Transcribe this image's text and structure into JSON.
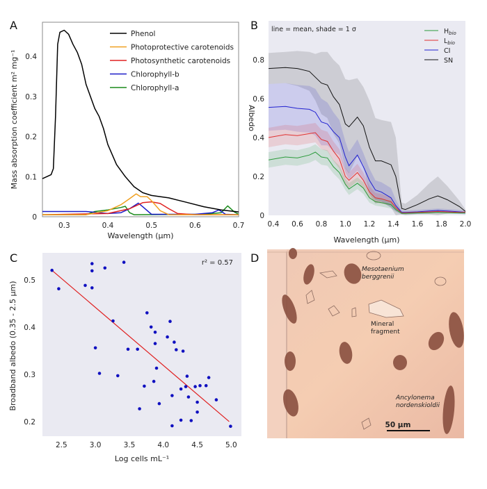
{
  "panels": {
    "a": "A",
    "b": "B",
    "c": "C",
    "d": "D"
  },
  "chart_data": [
    {
      "type": "line",
      "panel": "A",
      "xlabel": "Wavelength (μm)",
      "ylabel": "Mass absorption coefficient m² mg⁻¹",
      "xlim": [
        0.25,
        0.7
      ],
      "ylim": [
        0,
        0.485
      ],
      "xticks": [
        0.3,
        0.4,
        0.5,
        0.6,
        0.7
      ],
      "xtick_labels": [
        "0.3",
        "0.4",
        "0.5",
        "0.6",
        "0.7"
      ],
      "yticks": [
        0,
        0.1,
        0.2,
        0.3,
        0.4
      ],
      "ytick_labels": [
        "0",
        "0.1",
        "0.2",
        "0.3",
        "0.4"
      ],
      "grid": false,
      "legend_placement": "top-right",
      "series": [
        {
          "name": "Phenol",
          "color": "#000000",
          "x": [
            0.25,
            0.26,
            0.27,
            0.275,
            0.28,
            0.285,
            0.29,
            0.3,
            0.31,
            0.32,
            0.33,
            0.34,
            0.35,
            0.37,
            0.38,
            0.39,
            0.4,
            0.42,
            0.44,
            0.46,
            0.48,
            0.5,
            0.54,
            0.58,
            0.62,
            0.66,
            0.7
          ],
          "y": [
            0.095,
            0.1,
            0.105,
            0.12,
            0.25,
            0.43,
            0.46,
            0.465,
            0.455,
            0.43,
            0.41,
            0.38,
            0.33,
            0.27,
            0.25,
            0.22,
            0.18,
            0.13,
            0.1,
            0.075,
            0.06,
            0.053,
            0.047,
            0.036,
            0.025,
            0.017,
            0.012
          ]
        },
        {
          "name": "Photoprotective carotenoids",
          "color": "#f0a020",
          "x": [
            0.25,
            0.35,
            0.4,
            0.43,
            0.45,
            0.465,
            0.475,
            0.49,
            0.5,
            0.52,
            0.54,
            0.7
          ],
          "y": [
            0.005,
            0.005,
            0.015,
            0.03,
            0.045,
            0.057,
            0.05,
            0.05,
            0.04,
            0.015,
            0.005,
            0.005
          ]
        },
        {
          "name": "Photosynthetic carotenoids",
          "color": "#e02020",
          "x": [
            0.25,
            0.4,
            0.45,
            0.48,
            0.5,
            0.52,
            0.54,
            0.56,
            0.6,
            0.7
          ],
          "y": [
            0.005,
            0.008,
            0.02,
            0.035,
            0.037,
            0.033,
            0.02,
            0.008,
            0.005,
            0.005
          ]
        },
        {
          "name": "Chlorophyll-b",
          "color": "#1a1ac8",
          "x": [
            0.25,
            0.35,
            0.4,
            0.43,
            0.45,
            0.47,
            0.48,
            0.5,
            0.6,
            0.64,
            0.655,
            0.67,
            0.7
          ],
          "y": [
            0.013,
            0.013,
            0.008,
            0.01,
            0.02,
            0.034,
            0.025,
            0.006,
            0.006,
            0.01,
            0.017,
            0.006,
            0.005
          ]
        },
        {
          "name": "Chlorophyll-a",
          "color": "#1a8a1a",
          "x": [
            0.25,
            0.35,
            0.37,
            0.4,
            0.43,
            0.44,
            0.45,
            0.46,
            0.62,
            0.66,
            0.675,
            0.69,
            0.7
          ],
          "y": [
            0.005,
            0.005,
            0.013,
            0.017,
            0.023,
            0.026,
            0.01,
            0.005,
            0.006,
            0.01,
            0.027,
            0.012,
            0.006
          ]
        }
      ]
    },
    {
      "type": "area",
      "panel": "B",
      "annotation": "line = mean, shade = 1 σ",
      "xlabel": "Wavelength (μm)",
      "ylabel": "Albedo",
      "xlim": [
        0.36,
        2.0
      ],
      "ylim": [
        0,
        1.0
      ],
      "xticks": [
        0.4,
        0.6,
        0.8,
        1.0,
        1.2,
        1.4,
        1.6,
        1.8,
        2.0
      ],
      "xtick_labels": [
        "0.4",
        "0.6",
        "0.8",
        "1.0",
        "1.2",
        "1.4",
        "1.6",
        "1.8",
        "2.0"
      ],
      "yticks": [
        0,
        0.2,
        0.4,
        0.6,
        0.8
      ],
      "ytick_labels": [
        "0",
        "0.2",
        "0.4",
        "0.6",
        "0.8"
      ],
      "grid": false,
      "background": "#eaeaf2",
      "legend_placement": "top-right",
      "x": [
        0.36,
        0.5,
        0.6,
        0.7,
        0.75,
        0.8,
        0.85,
        0.9,
        0.95,
        1.0,
        1.03,
        1.1,
        1.15,
        1.2,
        1.25,
        1.3,
        1.38,
        1.42,
        1.47,
        1.5,
        1.6,
        1.7,
        1.77,
        1.85,
        1.95,
        2.0
      ],
      "series": [
        {
          "name": "SN",
          "color": "#111111",
          "mean": [
            0.755,
            0.76,
            0.755,
            0.74,
            0.71,
            0.68,
            0.67,
            0.61,
            0.57,
            0.47,
            0.455,
            0.505,
            0.46,
            0.35,
            0.28,
            0.28,
            0.26,
            0.2,
            0.035,
            0.03,
            0.055,
            0.085,
            0.1,
            0.08,
            0.045,
            0.02
          ],
          "sigma": [
            0.08,
            0.08,
            0.09,
            0.1,
            0.12,
            0.16,
            0.17,
            0.19,
            0.2,
            0.23,
            0.24,
            0.2,
            0.2,
            0.24,
            0.22,
            0.21,
            0.22,
            0.2,
            0.03,
            0.03,
            0.05,
            0.08,
            0.1,
            0.07,
            0.03,
            0.01
          ]
        },
        {
          "name": "CI",
          "color": "#2020d0",
          "mean": [
            0.555,
            0.56,
            0.55,
            0.545,
            0.53,
            0.48,
            0.47,
            0.43,
            0.4,
            0.3,
            0.255,
            0.31,
            0.25,
            0.18,
            0.13,
            0.12,
            0.09,
            0.05,
            0.015,
            0.015,
            0.018,
            0.022,
            0.025,
            0.022,
            0.018,
            0.015
          ],
          "sigma": [
            0.12,
            0.12,
            0.12,
            0.12,
            0.12,
            0.12,
            0.11,
            0.1,
            0.09,
            0.08,
            0.07,
            0.08,
            0.07,
            0.06,
            0.05,
            0.05,
            0.05,
            0.03,
            0.01,
            0.01,
            0.01,
            0.01,
            0.01,
            0.01,
            0.01,
            0.01
          ]
        },
        {
          "name": "Lbio",
          "label_main": "L",
          "label_sub": "bio",
          "color": "#e03030",
          "mean": [
            0.4,
            0.415,
            0.41,
            0.42,
            0.425,
            0.39,
            0.38,
            0.33,
            0.29,
            0.2,
            0.18,
            0.22,
            0.18,
            0.12,
            0.09,
            0.085,
            0.07,
            0.04,
            0.012,
            0.013,
            0.015,
            0.018,
            0.02,
            0.018,
            0.015,
            0.015
          ],
          "sigma": [
            0.05,
            0.05,
            0.05,
            0.05,
            0.05,
            0.05,
            0.05,
            0.05,
            0.05,
            0.045,
            0.04,
            0.045,
            0.04,
            0.03,
            0.025,
            0.025,
            0.02,
            0.015,
            0.005,
            0.005,
            0.005,
            0.005,
            0.005,
            0.005,
            0.005,
            0.005
          ]
        },
        {
          "name": "Hbio",
          "label_main": "H",
          "label_sub": "bio",
          "color": "#2a9a3a",
          "mean": [
            0.285,
            0.3,
            0.295,
            0.31,
            0.325,
            0.3,
            0.295,
            0.25,
            0.22,
            0.16,
            0.135,
            0.165,
            0.14,
            0.09,
            0.07,
            0.065,
            0.055,
            0.03,
            0.01,
            0.01,
            0.012,
            0.013,
            0.015,
            0.013,
            0.012,
            0.012
          ],
          "sigma": [
            0.04,
            0.04,
            0.04,
            0.04,
            0.04,
            0.04,
            0.04,
            0.035,
            0.035,
            0.03,
            0.03,
            0.03,
            0.03,
            0.025,
            0.02,
            0.02,
            0.02,
            0.01,
            0.005,
            0.005,
            0.005,
            0.005,
            0.005,
            0.005,
            0.005,
            0.005
          ]
        }
      ],
      "legend_order": [
        "Hbio",
        "Lbio",
        "CI",
        "SN"
      ]
    },
    {
      "type": "scatter",
      "panel": "C",
      "annotation": "r² = 0.57",
      "xlabel": "Log cells mL⁻¹",
      "ylabel": "Broadband albedo (0.35 - 2.5 μm)",
      "xlim": [
        2.22,
        5.15
      ],
      "ylim": [
        0.169,
        0.557
      ],
      "xticks": [
        2.5,
        3.0,
        3.5,
        4.0,
        4.5,
        5.0
      ],
      "xtick_labels": [
        "2.5",
        "3.0",
        "3.5",
        "4.0",
        "4.5",
        "5.0"
      ],
      "yticks": [
        0.2,
        0.3,
        0.4,
        0.5
      ],
      "ytick_labels": [
        "0.2",
        "0.3",
        "0.4",
        "0.5"
      ],
      "grid": false,
      "background": "#eaeaf2",
      "point_color": "#1010c0",
      "fit_color": "#e02020",
      "fit_line": {
        "x": [
          2.36,
          4.97
        ],
        "y": [
          0.52,
          0.2
        ]
      },
      "points": [
        [
          2.36,
          0.52
        ],
        [
          2.46,
          0.481
        ],
        [
          2.85,
          0.488
        ],
        [
          2.95,
          0.534
        ],
        [
          2.95,
          0.519
        ],
        [
          2.95,
          0.483
        ],
        [
          3.14,
          0.525
        ],
        [
          3.42,
          0.537
        ],
        [
          3.26,
          0.413
        ],
        [
          3.0,
          0.356
        ],
        [
          3.06,
          0.302
        ],
        [
          3.33,
          0.297
        ],
        [
          3.48,
          0.353
        ],
        [
          3.62,
          0.353
        ],
        [
          3.65,
          0.227
        ],
        [
          3.72,
          0.275
        ],
        [
          3.76,
          0.43
        ],
        [
          3.82,
          0.4
        ],
        [
          3.88,
          0.389
        ],
        [
          3.88,
          0.365
        ],
        [
          3.86,
          0.285
        ],
        [
          3.9,
          0.313
        ],
        [
          3.94,
          0.238
        ],
        [
          4.06,
          0.379
        ],
        [
          4.1,
          0.412
        ],
        [
          4.16,
          0.368
        ],
        [
          4.19,
          0.352
        ],
        [
          4.13,
          0.255
        ],
        [
          4.13,
          0.191
        ],
        [
          4.26,
          0.269
        ],
        [
          4.26,
          0.203
        ],
        [
          4.29,
          0.349
        ],
        [
          4.35,
          0.296
        ],
        [
          4.33,
          0.274
        ],
        [
          4.37,
          0.252
        ],
        [
          4.41,
          0.202
        ],
        [
          4.47,
          0.274
        ],
        [
          4.5,
          0.241
        ],
        [
          4.5,
          0.22
        ],
        [
          4.54,
          0.276
        ],
        [
          4.63,
          0.276
        ],
        [
          4.67,
          0.293
        ],
        [
          4.78,
          0.246
        ],
        [
          4.99,
          0.19
        ]
      ]
    }
  ],
  "micrograph": {
    "labels": {
      "mesotaenium_1": "Mesotaenium",
      "mesotaenium_2": "berggrenii",
      "mineral_1": "Mineral",
      "mineral_2": "fragment",
      "ancylonema_1": "Ancylonema",
      "ancylonema_2": "nordenskioldii"
    },
    "scale_bar": "50 μm"
  }
}
